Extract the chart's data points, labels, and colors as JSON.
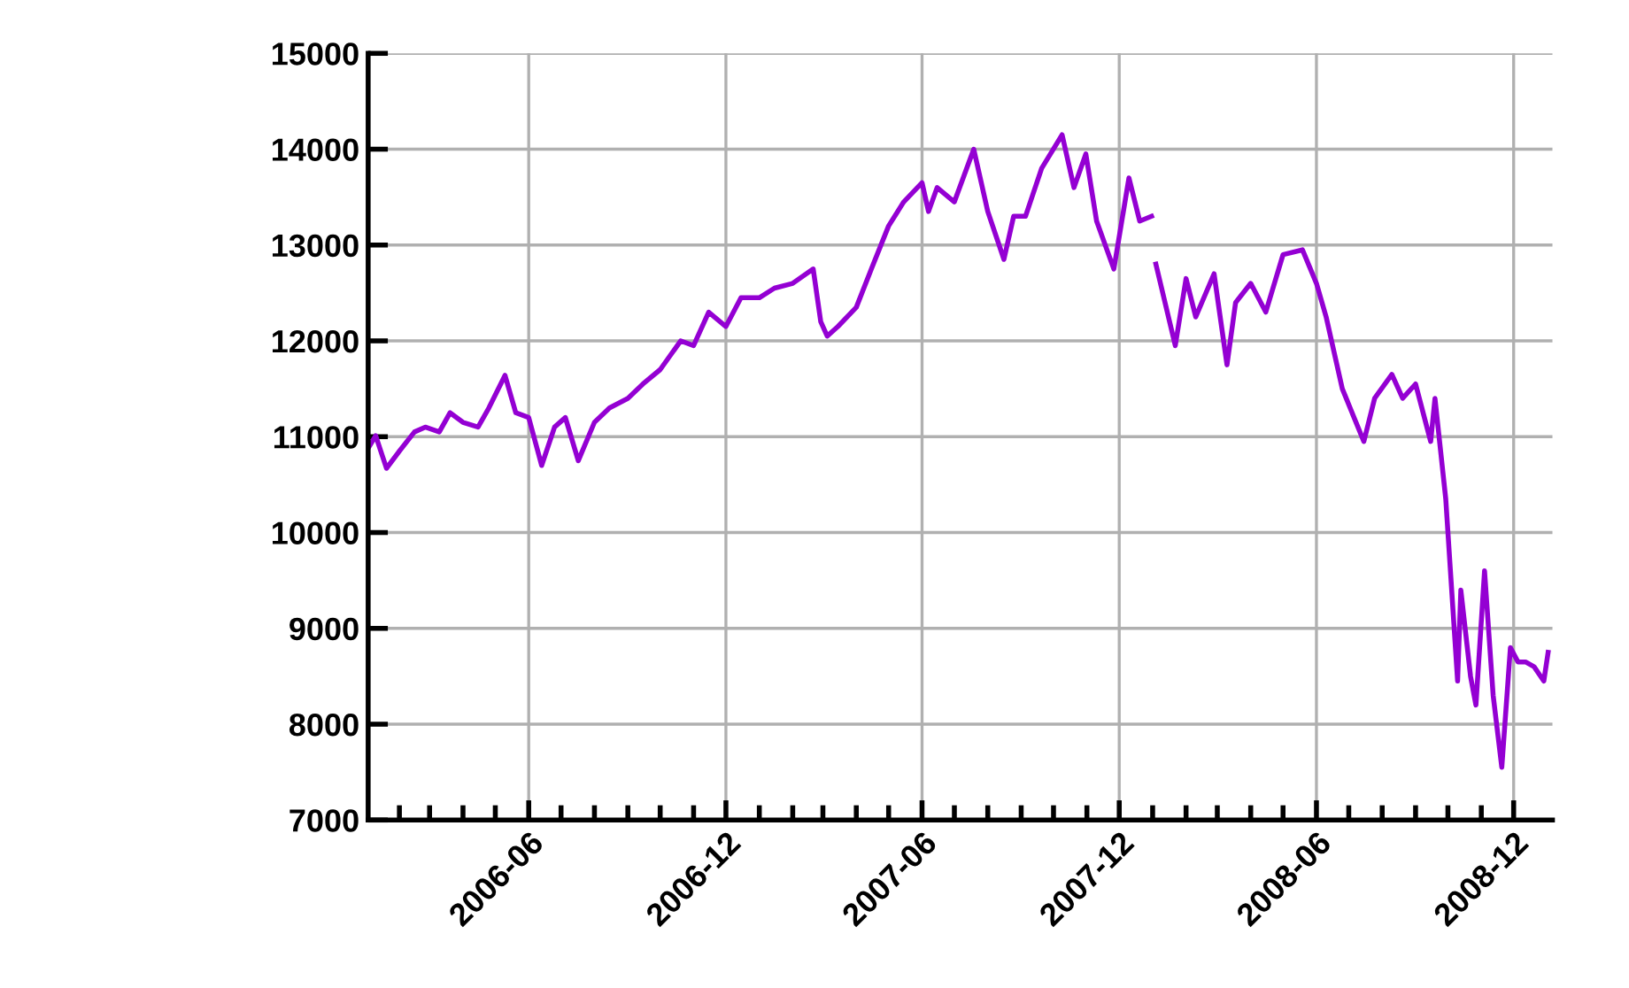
{
  "chart_data": {
    "type": "line",
    "x": [
      "2006-01-03",
      "2006-01-10",
      "2006-01-20",
      "2006-02-01",
      "2006-02-15",
      "2006-02-25",
      "2006-03-10",
      "2006-03-20",
      "2006-04-01",
      "2006-04-15",
      "2006-04-25",
      "2006-05-10",
      "2006-05-20",
      "2006-06-01",
      "2006-06-13",
      "2006-06-25",
      "2006-07-05",
      "2006-07-17",
      "2006-08-01",
      "2006-08-15",
      "2006-09-01",
      "2006-09-15",
      "2006-10-01",
      "2006-10-20",
      "2006-11-01",
      "2006-11-15",
      "2006-12-01",
      "2006-12-15",
      "2007-01-01",
      "2007-01-15",
      "2007-02-01",
      "2007-02-20",
      "2007-02-27",
      "2007-03-05",
      "2007-03-15",
      "2007-04-01",
      "2007-04-15",
      "2007-05-01",
      "2007-05-15",
      "2007-06-01",
      "2007-06-07",
      "2007-06-15",
      "2007-07-01",
      "2007-07-19",
      "2007-08-01",
      "2007-08-16",
      "2007-08-25",
      "2007-09-05",
      "2007-09-20",
      "2007-10-09",
      "2007-10-20",
      "2007-10-31",
      "2007-11-10",
      "2007-11-26",
      "2007-12-10",
      "2007-12-20",
      "2007-12-31",
      "2008-01-02",
      "2008-01-04",
      "2008-01-22",
      "2008-02-01",
      "2008-02-10",
      "2008-02-27",
      "2008-03-10",
      "2008-03-18",
      "2008-04-01",
      "2008-04-15",
      "2008-05-01",
      "2008-05-19",
      "2008-06-01",
      "2008-06-10",
      "2008-06-25",
      "2008-07-15",
      "2008-07-25",
      "2008-08-10",
      "2008-08-20",
      "2008-09-01",
      "2008-09-15",
      "2008-09-19",
      "2008-09-29",
      "2008-10-10",
      "2008-10-13",
      "2008-10-22",
      "2008-10-27",
      "2008-11-04",
      "2008-11-12",
      "2008-11-20",
      "2008-11-28",
      "2008-12-05",
      "2008-12-12",
      "2008-12-20",
      "2008-12-29",
      "2009-01-02"
    ],
    "series": [
      {
        "color": "#9400d3",
        "values": [
          10880,
          11010,
          10670,
          10850,
          11050,
          11100,
          11050,
          11250,
          11150,
          11100,
          11300,
          11640,
          11250,
          11200,
          10700,
          11100,
          11200,
          10750,
          11150,
          11300,
          11400,
          11550,
          11700,
          12000,
          11950,
          12300,
          12150,
          12450,
          12450,
          12550,
          12600,
          12750,
          12200,
          12050,
          12150,
          12350,
          12750,
          13200,
          13450,
          13650,
          13350,
          13600,
          13450,
          14000,
          13350,
          12850,
          13300,
          13300,
          13800,
          14150,
          13600,
          13950,
          13250,
          12750,
          13700,
          13250,
          13300,
          null,
          12800,
          11950,
          12650,
          12250,
          12700,
          11750,
          12400,
          12600,
          12300,
          12900,
          12950,
          12600,
          12250,
          11500,
          10950,
          11400,
          11650,
          11400,
          11550,
          10950,
          11400,
          10350,
          8450,
          9400,
          8500,
          8200,
          9600,
          8300,
          7550,
          8800,
          8650,
          8650,
          8600,
          8450,
          8750
        ]
      }
    ],
    "xlim": [
      "2006-01-03",
      "2009-01-06"
    ],
    "xticks": [
      {
        "value": "2006-02",
        "label": null
      },
      {
        "value": "2006-03",
        "label": null
      },
      {
        "value": "2006-04",
        "label": null
      },
      {
        "value": "2006-05",
        "label": null
      },
      {
        "value": "2006-06",
        "label": "2006-06"
      },
      {
        "value": "2006-07",
        "label": null
      },
      {
        "value": "2006-08",
        "label": null
      },
      {
        "value": "2006-09",
        "label": null
      },
      {
        "value": "2006-10",
        "label": null
      },
      {
        "value": "2006-11",
        "label": null
      },
      {
        "value": "2006-12",
        "label": "2006-12"
      },
      {
        "value": "2007-01",
        "label": null
      },
      {
        "value": "2007-02",
        "label": null
      },
      {
        "value": "2007-03",
        "label": null
      },
      {
        "value": "2007-04",
        "label": null
      },
      {
        "value": "2007-05",
        "label": null
      },
      {
        "value": "2007-06",
        "label": "2007-06"
      },
      {
        "value": "2007-07",
        "label": null
      },
      {
        "value": "2007-08",
        "label": null
      },
      {
        "value": "2007-09",
        "label": null
      },
      {
        "value": "2007-10",
        "label": null
      },
      {
        "value": "2007-11",
        "label": null
      },
      {
        "value": "2007-12",
        "label": "2007-12"
      },
      {
        "value": "2008-01",
        "label": null
      },
      {
        "value": "2008-02",
        "label": null
      },
      {
        "value": "2008-03",
        "label": null
      },
      {
        "value": "2008-04",
        "label": null
      },
      {
        "value": "2008-05",
        "label": null
      },
      {
        "value": "2008-06",
        "label": "2008-06"
      },
      {
        "value": "2008-07",
        "label": null
      },
      {
        "value": "2008-08",
        "label": null
      },
      {
        "value": "2008-09",
        "label": null
      },
      {
        "value": "2008-10",
        "label": null
      },
      {
        "value": "2008-11",
        "label": null
      },
      {
        "value": "2008-12",
        "label": "2008-12"
      }
    ],
    "ylim": [
      7000,
      15000
    ],
    "yticks": [
      7000,
      8000,
      9000,
      10000,
      11000,
      12000,
      13000,
      14000,
      15000
    ],
    "grid": true,
    "legend": false,
    "marker": "none",
    "line_style": "solid"
  }
}
